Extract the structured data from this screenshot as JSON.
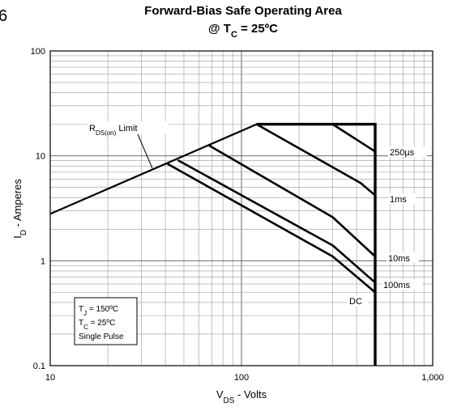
{
  "figure_number": "6",
  "chart_data": {
    "type": "line",
    "title": "Forward-Bias Safe Operating Area",
    "subtitle": {
      "prefix": "@ T",
      "sub": "C",
      "suffix": " = 25ºC"
    },
    "xlabel": {
      "main": "V",
      "sub": "DS",
      "suffix": " - Volts"
    },
    "ylabel": {
      "main": "I",
      "sub": "D",
      "suffix": " - Amperes"
    },
    "x_scale": "log",
    "y_scale": "log",
    "xlim": [
      10,
      1000
    ],
    "ylim": [
      0.1,
      100
    ],
    "x_ticks": [
      {
        "value": 10,
        "label": "10"
      },
      {
        "value": 100,
        "label": "100"
      },
      {
        "value": 1000,
        "label": "1,000"
      }
    ],
    "y_ticks": [
      {
        "value": 0.1,
        "label": "0.1"
      },
      {
        "value": 1,
        "label": "1"
      },
      {
        "value": 10,
        "label": "10"
      },
      {
        "value": 100,
        "label": "100"
      }
    ],
    "grid": true,
    "boundary": {
      "name": "SOA boundary",
      "points": [
        [
          10,
          2.8
        ],
        [
          120,
          20
        ],
        [
          500,
          20
        ],
        [
          500,
          0.1
        ]
      ]
    },
    "series": [
      {
        "label": "250µs",
        "points": [
          [
            300,
            20
          ],
          [
            500,
            11
          ]
        ]
      },
      {
        "label": "1ms",
        "points": [
          [
            120,
            20
          ],
          [
            420,
            5.5
          ],
          [
            500,
            4.2
          ]
        ]
      },
      {
        "label": "10ms",
        "points": [
          [
            68,
            12.5
          ],
          [
            300,
            2.6
          ],
          [
            500,
            1.1
          ]
        ]
      },
      {
        "label": "100ms",
        "points": [
          [
            47,
            9
          ],
          [
            300,
            1.4
          ],
          [
            500,
            0.62
          ]
        ]
      },
      {
        "label": "DC",
        "points": [
          [
            41,
            8.4
          ],
          [
            300,
            1.1
          ],
          [
            500,
            0.5
          ]
        ]
      }
    ],
    "annotations": {
      "rds_limit": {
        "prefix": "R",
        "sub": "DS(on)",
        "suffix": " Limit"
      },
      "conditions": [
        {
          "prefix": "T",
          "sub": "J",
          "suffix": " = 150ºC"
        },
        {
          "prefix": "T",
          "sub": "C",
          "suffix": " = 25ºC"
        },
        {
          "prefix": "Single Pulse",
          "sub": "",
          "suffix": ""
        }
      ]
    }
  }
}
